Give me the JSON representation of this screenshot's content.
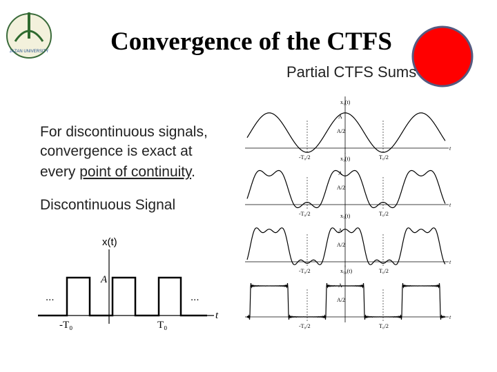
{
  "header": {
    "title": "Convergence of the CTFS",
    "logo_text": "JAZAN UNIVERSITY"
  },
  "subtitle": "Partial CTFS Sums",
  "body": {
    "line1": "For discontinuous signals,",
    "line2": "convergence is exact at",
    "line3_prefix": "every ",
    "line3_link": "point of continuity",
    "line3_suffix": ".",
    "heading": "Discontinuous Signal"
  },
  "signal_plot": {
    "y_label": "x(t)",
    "amplitude": "A",
    "dots_left": "...",
    "dots_right": "...",
    "neg_period": "-T₀",
    "pos_period": "T₀",
    "x_label": "t"
  },
  "panels": [
    {
      "label": "x₁(t)",
      "a": "A",
      "a_half": "A/2",
      "neg_half": "-T₀/2",
      "pos_half": "T₀/2",
      "x_label": "t"
    },
    {
      "label": "x₃(t)",
      "a": "A",
      "a_half": "A/2",
      "neg_half": "-T₀/2",
      "pos_half": "T₀/2",
      "x_label": "t"
    },
    {
      "label": "x₅(t)",
      "a": "A",
      "a_half": "A/2",
      "neg_half": "-T₀/2",
      "pos_half": "T₀/2",
      "x_label": "t"
    },
    {
      "label": "x₅₉(t)",
      "a": "A",
      "a_half": "A/2",
      "neg_half": "-T₀/2",
      "pos_half": "T₀/2",
      "x_label": "t"
    }
  ]
}
